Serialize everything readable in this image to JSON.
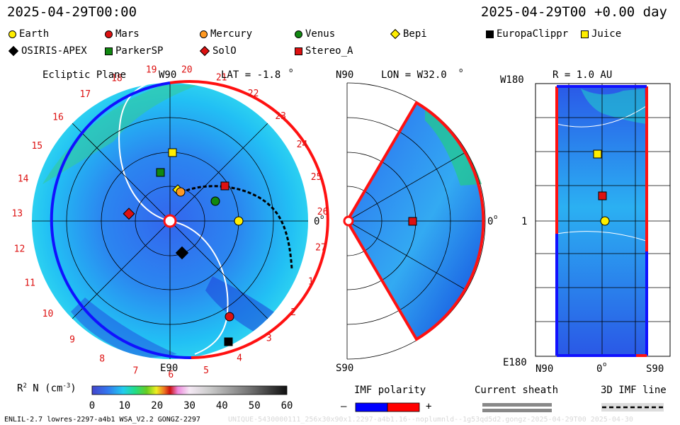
{
  "header": {
    "date_left": "2025-04-29T00:00",
    "date_right": "2025-04-29T00 +0.00 day"
  },
  "legend": [
    {
      "name": "Earth",
      "shape": "circle",
      "color": "#ffee00"
    },
    {
      "name": "Mars",
      "shape": "circle",
      "color": "#dd1111"
    },
    {
      "name": "Mercury",
      "shape": "circle",
      "color": "#ff9922"
    },
    {
      "name": "Venus",
      "shape": "circle",
      "color": "#118811"
    },
    {
      "name": "Bepi",
      "shape": "diamond",
      "color": "#ffee00"
    },
    {
      "name": "EuropaClippr",
      "shape": "square",
      "color": "#000000"
    },
    {
      "name": "Juice",
      "shape": "square",
      "color": "#ffee00"
    },
    {
      "name": "OSIRIS-APEX",
      "shape": "diamond",
      "color": "#000000"
    },
    {
      "name": "ParkerSP",
      "shape": "square",
      "color": "#118811"
    },
    {
      "name": "SolO",
      "shape": "diamond",
      "color": "#dd1111"
    },
    {
      "name": "Stereo_A",
      "shape": "square",
      "color": "#dd1111"
    }
  ],
  "panels": {
    "ecliptic": {
      "title": "Ecliptic Plane",
      "lat_label": "LAT = -1.8",
      "degree_mark": "o",
      "top_label": "W90",
      "bottom_label": "E90",
      "right_label": "0",
      "carrington_numbers": [
        "19",
        "20",
        "21",
        "22",
        "23",
        "24",
        "25",
        "26",
        "27",
        "1",
        "2",
        "3",
        "4",
        "5",
        "6",
        "7",
        "8",
        "9",
        "10",
        "11",
        "12",
        "13",
        "14",
        "15",
        "16",
        "17",
        "18"
      ]
    },
    "meridional": {
      "top_label": "N90",
      "bottom_label": "S90",
      "lon_label": "LON = W32.0",
      "right_label": "0",
      "degree_mark": "o"
    },
    "radial": {
      "title": "R = 1.0 AU",
      "top_left": "W180",
      "bottom_left": "E180",
      "mid_left": "1",
      "bottom_axis": [
        "N90",
        "0",
        "S90"
      ],
      "degree_mark": "o"
    }
  },
  "colorbar": {
    "label": "R",
    "label_sup": "2",
    "label_rest": " N (cm",
    "label_unit_sup": "-3",
    "label_close": ")",
    "ticks": [
      "0",
      "10",
      "20",
      "30",
      "40",
      "50",
      "60"
    ],
    "range": [
      0,
      60
    ]
  },
  "imf": {
    "title": "IMF polarity",
    "minus": "–",
    "plus": "+",
    "negative_color": "#0000ff",
    "positive_color": "#ff0000"
  },
  "sheath": {
    "title": "Current sheath"
  },
  "imf3d": {
    "title": "3D IMF line"
  },
  "footer": {
    "left": "ENLIL-2.7 lowres-2297-a4b1 WSA_V2.2 GONGZ-2297",
    "right": "UNIQUE-5430000111_256x30x90x1.2297-a4b1.16--noplumnld--1g53qd5d2.gongz-2025-04-29T00    2025-04-30"
  },
  "chart_data": [
    {
      "type": "heatmap",
      "title": "Ecliptic Plane",
      "quantity": "R2 N (cm-3)",
      "objects": [
        "Earth",
        "Mars",
        "Bepi",
        "Mercury",
        "Venus",
        "Juice",
        "ParkerSP",
        "SolO",
        "OSIRIS-APEX",
        "EuropaClippr",
        "Stereo_A"
      ]
    },
    {
      "type": "heatmap",
      "title": "LON = W32.0",
      "objects": [
        "Stereo_A"
      ]
    },
    {
      "type": "heatmap",
      "title": "R = 1.0 AU",
      "objects": [
        "Juice",
        "Stereo_A",
        "Earth"
      ]
    }
  ]
}
